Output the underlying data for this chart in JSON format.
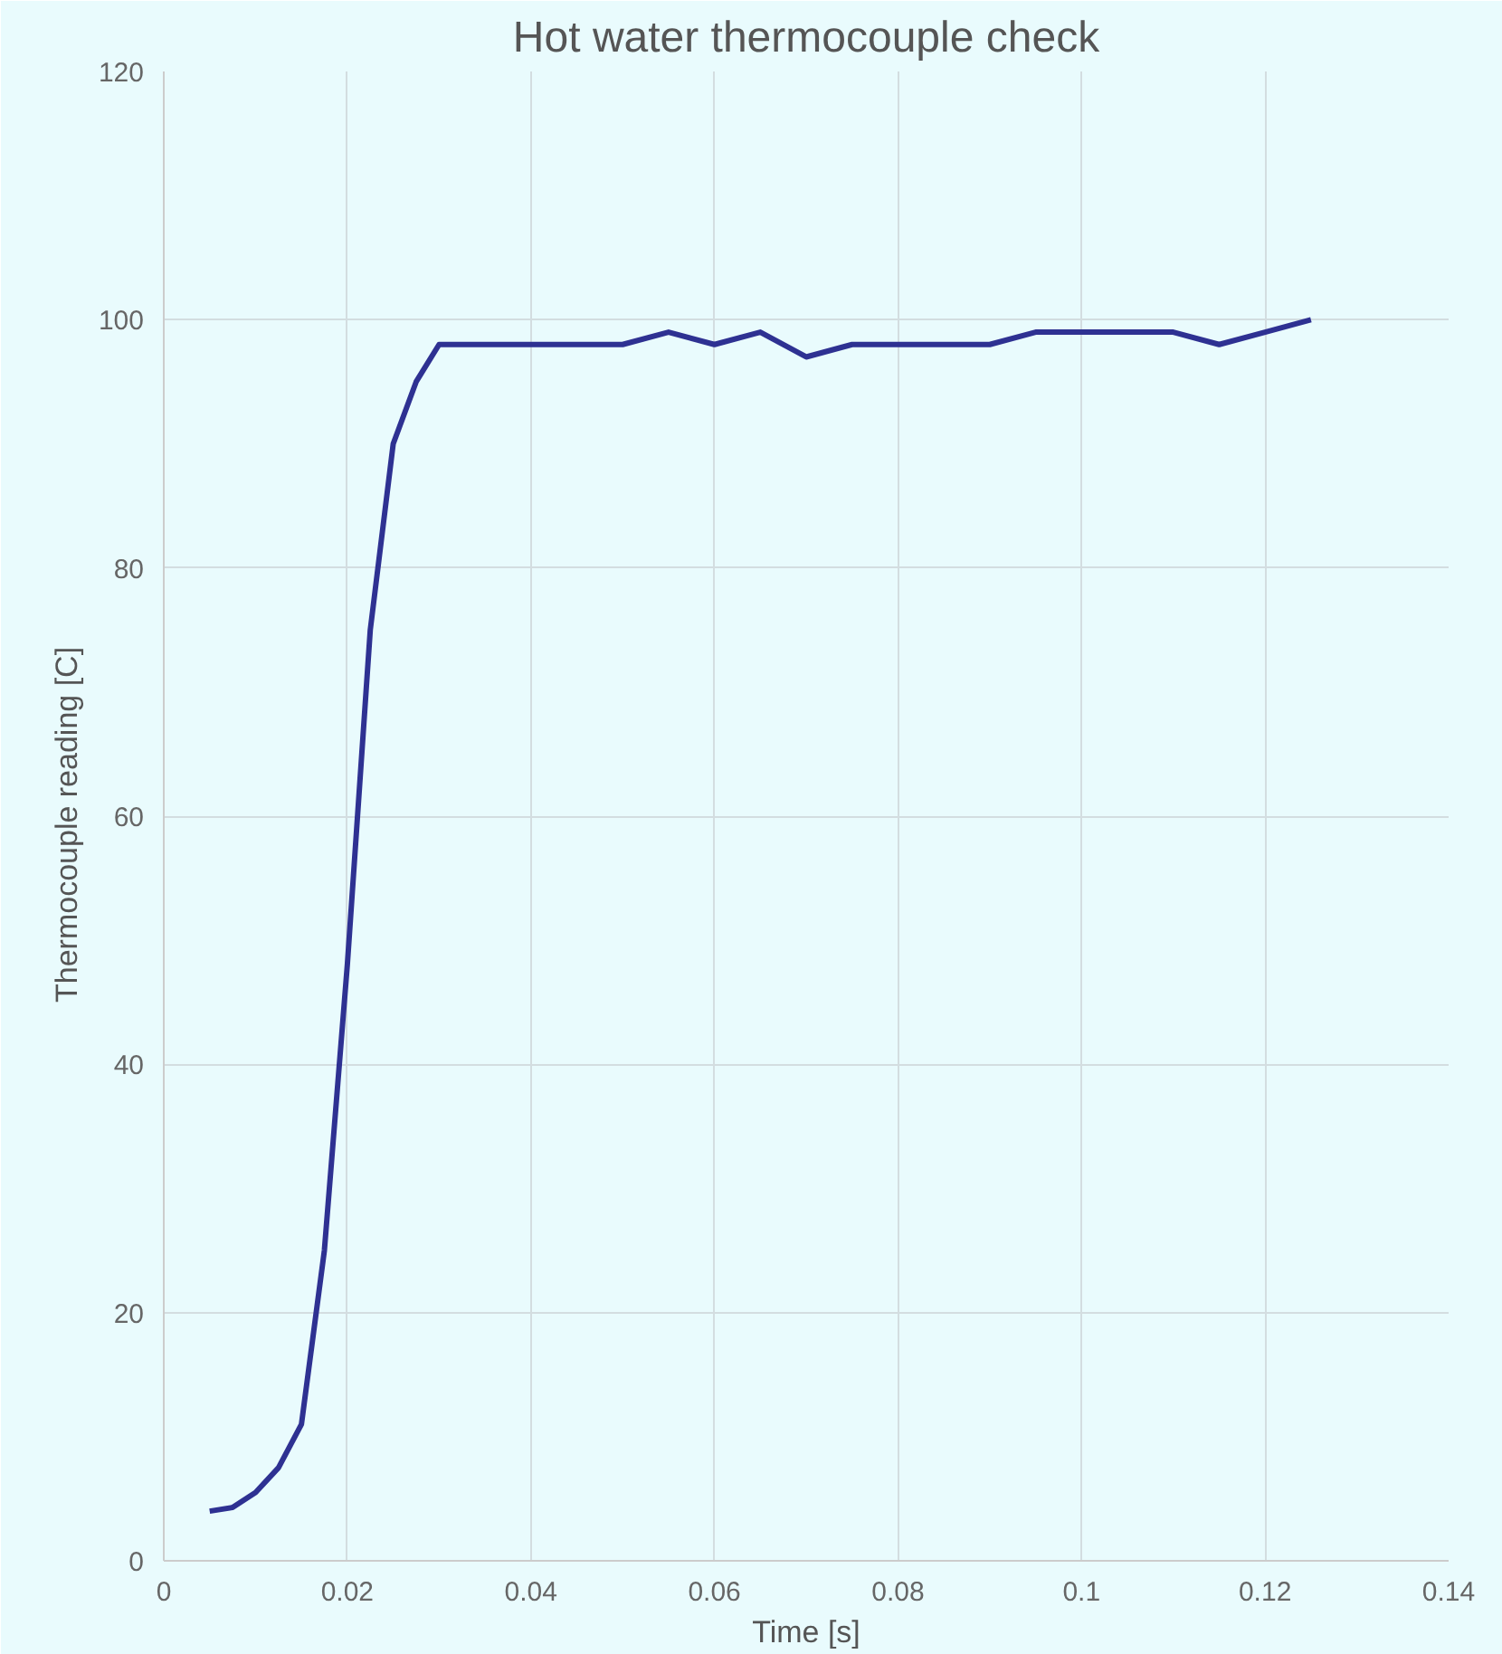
{
  "chart_data": {
    "type": "line",
    "title": "Hot water thermocouple check",
    "xlabel": "Time [s]",
    "ylabel": "Thermocouple  reading  [C]",
    "x": [
      0.005,
      0.0075,
      0.01,
      0.0125,
      0.015,
      0.0175,
      0.02,
      0.0225,
      0.025,
      0.0275,
      0.03,
      0.035,
      0.04,
      0.045,
      0.05,
      0.055,
      0.06,
      0.065,
      0.07,
      0.075,
      0.08,
      0.085,
      0.09,
      0.095,
      0.1,
      0.105,
      0.11,
      0.115,
      0.12,
      0.125
    ],
    "series": [
      {
        "color": "#2e3192",
        "values": [
          4,
          4.3,
          5.5,
          7.5,
          11,
          25,
          48,
          75,
          90,
          95,
          98,
          98,
          98,
          98,
          98,
          99,
          98,
          99,
          97,
          98,
          98,
          98,
          98,
          99,
          99,
          99,
          99,
          98,
          99,
          100
        ]
      }
    ],
    "xlim": [
      0,
      0.14
    ],
    "xticks": [
      0,
      0.02,
      0.04,
      0.06,
      0.08,
      0.1,
      0.12,
      0.14
    ],
    "ylim": [
      0,
      120
    ],
    "yticks": [
      0,
      20,
      40,
      60,
      80,
      100,
      120
    ],
    "grid": true,
    "line_style": "solid"
  }
}
